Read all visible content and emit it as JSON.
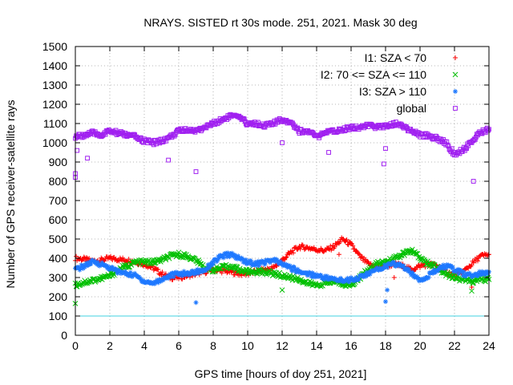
{
  "chart_data": {
    "type": "scatter",
    "title": "NRAYS. SISTED rt 30s mode. 251, 2021. Mask 30 deg",
    "xlabel": "GPS time [hours of doy 251, 2021]",
    "ylabel": "Number of GPS receiver-satellite rays",
    "xlim": [
      0,
      24
    ],
    "ylim": [
      0,
      1500
    ],
    "x_ticks": [
      "0",
      "2",
      "4",
      "6",
      "8",
      "10",
      "12",
      "14",
      "16",
      "18",
      "20",
      "22",
      "24"
    ],
    "y_ticks": [
      "0",
      "100",
      "200",
      "300",
      "400",
      "500",
      "600",
      "700",
      "800",
      "900",
      "1000",
      "1100",
      "1200",
      "1300",
      "1400",
      "1500"
    ],
    "grid": true,
    "legend_position": "top-right",
    "reference_line": {
      "y": 100,
      "color": "#40d0e0"
    },
    "series": [
      {
        "name": "I1: SZA < 70",
        "color": "#ff0000",
        "marker": "+",
        "x": [
          0,
          0.5,
          1,
          1.5,
          2,
          2.5,
          3,
          3.5,
          4,
          4.5,
          5,
          5.5,
          6,
          6.5,
          7,
          7.5,
          8,
          8.5,
          9,
          9.5,
          10,
          10.5,
          11,
          11.5,
          12,
          12.5,
          13,
          13.5,
          14,
          14.5,
          15,
          15.5,
          16,
          16.5,
          17,
          17.5,
          18,
          18.5,
          19,
          19.5,
          20,
          20.5,
          21,
          21.5,
          22,
          22.5,
          23,
          23.5,
          24
        ],
        "y": [
          400,
          395,
          385,
          390,
          400,
          395,
          390,
          380,
          370,
          350,
          320,
          300,
          300,
          310,
          320,
          330,
          340,
          335,
          330,
          320,
          320,
          330,
          340,
          350,
          390,
          430,
          460,
          455,
          445,
          440,
          460,
          500,
          470,
          410,
          370,
          350,
          360,
          370,
          360,
          340,
          360,
          370,
          360,
          330,
          310,
          330,
          370,
          410,
          420
        ],
        "outliers_x": [
          15.3,
          18.5,
          23
        ],
        "outliers_y": [
          420,
          300,
          250
        ]
      },
      {
        "name": "I2: 70 <= SZA <= 110",
        "color": "#00c000",
        "marker": "x",
        "x": [
          0,
          0.5,
          1,
          1.5,
          2,
          2.5,
          3,
          3.5,
          4,
          4.5,
          5,
          5.5,
          6,
          6.5,
          7,
          7.5,
          8,
          8.5,
          9,
          9.5,
          10,
          10.5,
          11,
          11.5,
          12,
          12.5,
          13,
          13.5,
          14,
          14.5,
          15,
          15.5,
          16,
          16.5,
          17,
          17.5,
          18,
          18.5,
          19,
          19.5,
          20,
          20.5,
          21,
          21.5,
          22,
          22.5,
          23,
          23.5,
          24
        ],
        "y": [
          260,
          275,
          285,
          295,
          310,
          340,
          360,
          380,
          380,
          380,
          390,
          410,
          420,
          410,
          390,
          350,
          340,
          350,
          360,
          340,
          330,
          330,
          330,
          320,
          310,
          300,
          290,
          270,
          260,
          270,
          280,
          270,
          260,
          300,
          340,
          370,
          380,
          400,
          420,
          440,
          400,
          370,
          350,
          320,
          300,
          290,
          280,
          290,
          290
        ],
        "outliers_x": [
          0,
          12,
          23
        ],
        "outliers_y": [
          165,
          235,
          230
        ]
      },
      {
        "name": "I3: SZA > 110",
        "color": "#1e78ff",
        "marker": "*",
        "x": [
          0,
          0.5,
          1,
          1.5,
          2,
          2.5,
          3,
          3.5,
          4,
          4.5,
          5,
          5.5,
          6,
          6.5,
          7,
          7.5,
          8,
          8.5,
          9,
          9.5,
          10,
          10.5,
          11,
          11.5,
          12,
          12.5,
          13,
          13.5,
          14,
          14.5,
          15,
          15.5,
          16,
          16.5,
          17,
          17.5,
          18,
          18.5,
          19,
          19.5,
          20,
          20.5,
          21,
          21.5,
          22,
          22.5,
          23,
          23.5,
          24
        ],
        "y": [
          340,
          360,
          380,
          370,
          350,
          330,
          320,
          310,
          280,
          270,
          290,
          310,
          320,
          320,
          330,
          340,
          380,
          410,
          420,
          400,
          380,
          370,
          380,
          390,
          370,
          350,
          330,
          320,
          310,
          300,
          290,
          285,
          290,
          300,
          320,
          340,
          360,
          370,
          360,
          320,
          290,
          310,
          340,
          360,
          340,
          320,
          310,
          320,
          330
        ],
        "outliers_x": [
          7,
          18,
          18.1
        ],
        "outliers_y": [
          170,
          175,
          235
        ]
      },
      {
        "name": "global",
        "color": "#a020f0",
        "marker": "square",
        "x": [
          0,
          0.5,
          1,
          1.5,
          2,
          2.5,
          3,
          3.5,
          4,
          4.5,
          5,
          5.5,
          6,
          6.5,
          7,
          7.5,
          8,
          8.5,
          9,
          9.5,
          10,
          10.5,
          11,
          11.5,
          12,
          12.5,
          13,
          13.5,
          14,
          14.5,
          15,
          15.5,
          16,
          16.5,
          17,
          17.5,
          18,
          18.5,
          19,
          19.5,
          20,
          20.5,
          21,
          21.5,
          22,
          22.5,
          23,
          23.5,
          24
        ],
        "y": [
          1030,
          1040,
          1050,
          1040,
          1060,
          1050,
          1040,
          1030,
          1010,
          1000,
          1010,
          1030,
          1060,
          1070,
          1060,
          1080,
          1100,
          1120,
          1140,
          1130,
          1100,
          1100,
          1090,
          1100,
          1120,
          1110,
          1060,
          1060,
          1030,
          1050,
          1060,
          1070,
          1080,
          1080,
          1090,
          1080,
          1090,
          1100,
          1090,
          1060,
          1040,
          1040,
          1020,
          1000,
          940,
          960,
          1010,
          1050,
          1070
        ],
        "outliers_x": [
          0,
          0,
          0.1,
          0.7,
          5.4,
          7,
          12,
          14.7,
          17.9,
          18,
          23.1
        ],
        "outliers_y": [
          840,
          820,
          960,
          920,
          910,
          850,
          1000,
          950,
          890,
          970,
          800
        ]
      }
    ]
  }
}
